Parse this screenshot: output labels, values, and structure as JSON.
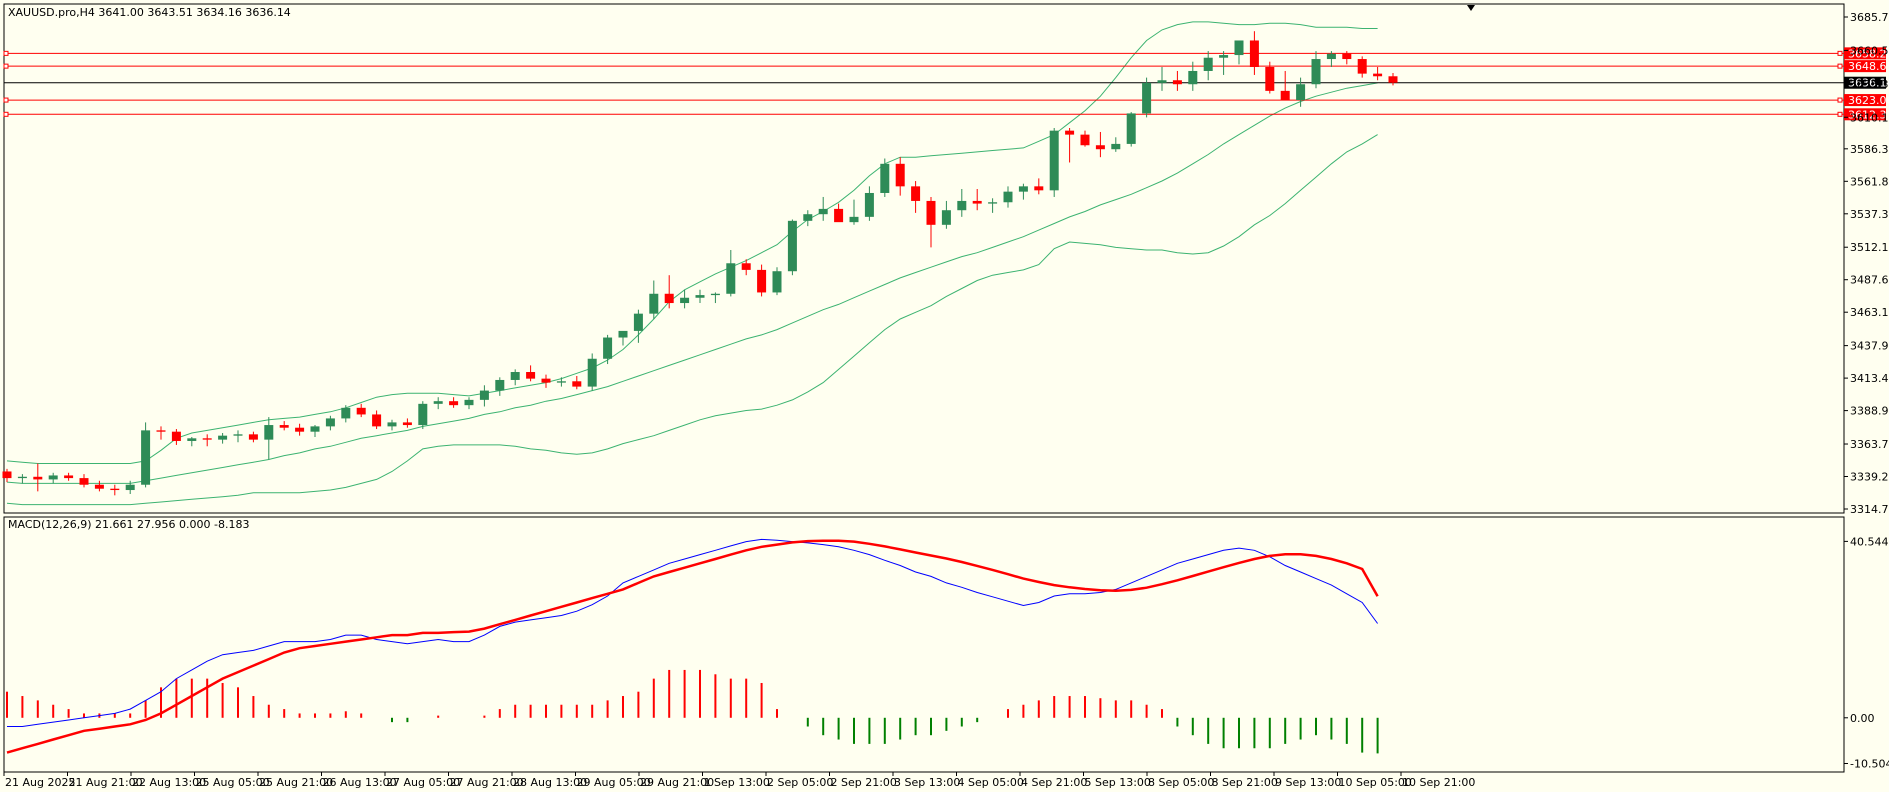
{
  "header": {
    "symbol_info": "XAUUSD.pro,H4  3641.00 3643.51 3634.16 3636.14"
  },
  "macd_header": {
    "text": "MACD(12,26,9) 21.661 27.956 0.000 -8.183"
  },
  "colors": {
    "background": "#fffff0",
    "bull": "#2e8b57",
    "bear": "#ff0000",
    "band": "#3cb371",
    "macd_line": "#0000ff",
    "signal_line": "#ff0000",
    "level_line": "#ff0000",
    "price_line": "#000000"
  },
  "chart_data": [
    {
      "type": "candlestick",
      "title": "XAUUSD.pro,H4",
      "y_ticks": [
        "3685.70",
        "3660.50",
        "3635.30",
        "3610.10",
        "3586.30",
        "3561.80",
        "3537.30",
        "3512.10",
        "3487.60",
        "3463.10",
        "3437.90",
        "3413.40",
        "3388.90",
        "3363.70",
        "3339.20",
        "3314.70"
      ],
      "ylim": [
        3314.7,
        3685.7
      ],
      "x_labels": [
        "21 Aug 2025",
        "21 Aug 21:00",
        "22 Aug 13:00",
        "25 Aug 05:00",
        "25 Aug 21:00",
        "26 Aug 13:00",
        "27 Aug 05:00",
        "27 Aug 21:00",
        "28 Aug 13:00",
        "29 Aug 05:00",
        "29 Aug 21:00",
        "1 Sep 13:00",
        "2 Sep 05:00",
        "2 Sep 21:00",
        "3 Sep 13:00",
        "4 Sep 05:00",
        "4 Sep 21:00",
        "5 Sep 13:00",
        "8 Sep 05:00",
        "8 Sep 21:00",
        "9 Sep 13:00",
        "10 Sep 05:00",
        "10 Sep 21:00"
      ],
      "levels": [
        {
          "label": "3658.28",
          "value": 3658.28
        },
        {
          "label": "3648.65",
          "value": 3648.65
        },
        {
          "label": "3623.06",
          "value": 3623.06
        },
        {
          "label": "3612.33",
          "value": 3612.33
        }
      ],
      "current_price": {
        "label": "3636.14",
        "value": 3636.14
      },
      "ohlc": [
        [
          3343,
          3345,
          3335,
          3338
        ],
        [
          3338,
          3341,
          3334,
          3339
        ],
        [
          3339,
          3349,
          3328,
          3337
        ],
        [
          3337,
          3342,
          3334,
          3340
        ],
        [
          3340,
          3342,
          3336,
          3338
        ],
        [
          3338,
          3341,
          3331,
          3333
        ],
        [
          3333,
          3336,
          3328,
          3330
        ],
        [
          3330,
          3333,
          3325,
          3329
        ],
        [
          3329,
          3336,
          3326,
          3333
        ],
        [
          3333,
          3380,
          3331,
          3374
        ],
        [
          3374,
          3377,
          3367,
          3373
        ],
        [
          3373,
          3375,
          3363,
          3366
        ],
        [
          3366,
          3369,
          3362,
          3368
        ],
        [
          3368,
          3371,
          3362,
          3367
        ],
        [
          3367,
          3372,
          3364,
          3370
        ],
        [
          3370,
          3374,
          3365,
          3371
        ],
        [
          3371,
          3373,
          3365,
          3367
        ],
        [
          3367,
          3384,
          3352,
          3378
        ],
        [
          3378,
          3381,
          3374,
          3376
        ],
        [
          3376,
          3379,
          3370,
          3373
        ],
        [
          3373,
          3378,
          3369,
          3377
        ],
        [
          3377,
          3385,
          3374,
          3383
        ],
        [
          3383,
          3393,
          3380,
          3391
        ],
        [
          3391,
          3394,
          3384,
          3386
        ],
        [
          3386,
          3389,
          3375,
          3377
        ],
        [
          3377,
          3382,
          3374,
          3380
        ],
        [
          3380,
          3383,
          3376,
          3378
        ],
        [
          3378,
          3396,
          3375,
          3394
        ],
        [
          3394,
          3399,
          3390,
          3396
        ],
        [
          3396,
          3399,
          3391,
          3393
        ],
        [
          3393,
          3399,
          3390,
          3397
        ],
        [
          3397,
          3408,
          3392,
          3404
        ],
        [
          3404,
          3414,
          3400,
          3412
        ],
        [
          3412,
          3420,
          3408,
          3418
        ],
        [
          3418,
          3423,
          3411,
          3413
        ],
        [
          3413,
          3416,
          3406,
          3410
        ],
        [
          3410,
          3414,
          3407,
          3411
        ],
        [
          3411,
          3415,
          3405,
          3407
        ],
        [
          3407,
          3432,
          3404,
          3428
        ],
        [
          3428,
          3446,
          3424,
          3444
        ],
        [
          3444,
          3448,
          3438,
          3449
        ],
        [
          3449,
          3465,
          3440,
          3462
        ],
        [
          3462,
          3487,
          3458,
          3477
        ],
        [
          3477,
          3491,
          3466,
          3470
        ],
        [
          3470,
          3480,
          3466,
          3474
        ],
        [
          3474,
          3480,
          3470,
          3476
        ],
        [
          3476,
          3478,
          3470,
          3477
        ],
        [
          3477,
          3510,
          3475,
          3500
        ],
        [
          3500,
          3503,
          3491,
          3495
        ],
        [
          3495,
          3499,
          3475,
          3478
        ],
        [
          3478,
          3497,
          3476,
          3494
        ],
        [
          3494,
          3533,
          3491,
          3532
        ],
        [
          3532,
          3540,
          3528,
          3537
        ],
        [
          3537,
          3550,
          3532,
          3541
        ],
        [
          3541,
          3545,
          3532,
          3531
        ],
        [
          3531,
          3548,
          3529,
          3535
        ],
        [
          3535,
          3558,
          3532,
          3553
        ],
        [
          3553,
          3579,
          3550,
          3575
        ],
        [
          3575,
          3580,
          3551,
          3558
        ],
        [
          3558,
          3562,
          3538,
          3547
        ],
        [
          3547,
          3550,
          3512,
          3529
        ],
        [
          3529,
          3547,
          3526,
          3540
        ],
        [
          3540,
          3556,
          3535,
          3547
        ],
        [
          3547,
          3556,
          3540,
          3545
        ],
        [
          3545,
          3549,
          3538,
          3546
        ],
        [
          3546,
          3558,
          3542,
          3554
        ],
        [
          3554,
          3560,
          3548,
          3558
        ],
        [
          3558,
          3564,
          3552,
          3555
        ],
        [
          3555,
          3602,
          3550,
          3600
        ],
        [
          3600,
          3602,
          3576,
          3597
        ],
        [
          3597,
          3600,
          3588,
          3589
        ],
        [
          3589,
          3599,
          3580,
          3586
        ],
        [
          3586,
          3595,
          3584,
          3590
        ],
        [
          3590,
          3614,
          3588,
          3613
        ],
        [
          3613,
          3640,
          3610,
          3636
        ],
        [
          3636,
          3648,
          3630,
          3638
        ],
        [
          3638,
          3645,
          3630,
          3635
        ],
        [
          3635,
          3652,
          3630,
          3645
        ],
        [
          3645,
          3660,
          3638,
          3655
        ],
        [
          3655,
          3660,
          3642,
          3657
        ],
        [
          3657,
          3665,
          3650,
          3668
        ],
        [
          3668,
          3675,
          3642,
          3648
        ],
        [
          3648,
          3652,
          3628,
          3630
        ],
        [
          3630,
          3645,
          3625,
          3623
        ],
        [
          3623,
          3640,
          3618,
          3635
        ],
        [
          3635,
          3660,
          3632,
          3654
        ],
        [
          3654,
          3660,
          3648,
          3658
        ],
        [
          3658,
          3660,
          3650,
          3654
        ],
        [
          3654,
          3656,
          3640,
          3643
        ],
        [
          3643,
          3648,
          3638,
          3641
        ],
        [
          3641,
          3643.51,
          3634.16,
          3636.14
        ]
      ],
      "bollinger": {
        "middle": [
          3335,
          3334,
          3334,
          3334,
          3334,
          3334,
          3334,
          3334,
          3334,
          3336,
          3338,
          3340,
          3342,
          3344,
          3346,
          3348,
          3350,
          3352,
          3355,
          3357,
          3360,
          3362,
          3365,
          3368,
          3370,
          3372,
          3374,
          3377,
          3379,
          3381,
          3383,
          3386,
          3388,
          3391,
          3393,
          3396,
          3398,
          3401,
          3404,
          3407,
          3411,
          3415,
          3419,
          3423,
          3427,
          3431,
          3435,
          3439,
          3443,
          3446,
          3450,
          3455,
          3460,
          3465,
          3469,
          3474,
          3479,
          3484,
          3489,
          3493,
          3497,
          3501,
          3505,
          3508,
          3512,
          3516,
          3520,
          3525,
          3530,
          3535,
          3539,
          3544,
          3548,
          3552,
          3557,
          3562,
          3568,
          3575,
          3582,
          3590,
          3597,
          3604,
          3611,
          3617,
          3622,
          3626,
          3629,
          3632,
          3634,
          3636
        ],
        "upper": [
          3351,
          3350,
          3349,
          3349,
          3349,
          3349,
          3349,
          3349,
          3349,
          3351,
          3359,
          3368,
          3372,
          3374,
          3376,
          3378,
          3380,
          3382,
          3383,
          3384,
          3386,
          3388,
          3391,
          3395,
          3399,
          3401,
          3402,
          3402,
          3402,
          3401,
          3400,
          3402,
          3404,
          3406,
          3408,
          3410,
          3413,
          3417,
          3421,
          3427,
          3435,
          3446,
          3458,
          3471,
          3480,
          3486,
          3492,
          3497,
          3502,
          3508,
          3514,
          3524,
          3533,
          3539,
          3546,
          3555,
          3566,
          3575,
          3580,
          3580,
          3581,
          3582,
          3583,
          3584,
          3585,
          3586,
          3587,
          3592,
          3597,
          3606,
          3615,
          3626,
          3640,
          3655,
          3668,
          3676,
          3680,
          3682,
          3682,
          3681,
          3680,
          3680,
          3681,
          3681,
          3680,
          3678,
          3678,
          3678,
          3677,
          3677
        ],
        "lower": [
          3319,
          3318,
          3318,
          3318,
          3318,
          3318,
          3318,
          3318,
          3318,
          3319,
          3320,
          3321,
          3322,
          3323,
          3324,
          3325,
          3327,
          3327,
          3327,
          3327,
          3328,
          3329,
          3331,
          3334,
          3337,
          3343,
          3351,
          3360,
          3362,
          3363,
          3363,
          3363,
          3363,
          3362,
          3360,
          3359,
          3357,
          3356,
          3357,
          3360,
          3364,
          3367,
          3370,
          3374,
          3378,
          3382,
          3385,
          3387,
          3389,
          3390,
          3393,
          3397,
          3403,
          3410,
          3420,
          3430,
          3440,
          3450,
          3458,
          3463,
          3468,
          3475,
          3481,
          3487,
          3491,
          3493,
          3495,
          3499,
          3511,
          3516,
          3515,
          3514,
          3512,
          3511,
          3510,
          3510,
          3508,
          3507,
          3508,
          3513,
          3520,
          3529,
          3536,
          3545,
          3555,
          3565,
          3575,
          3584,
          3590,
          3597
        ]
      }
    },
    {
      "type": "macd",
      "title": "MACD(12,26,9)",
      "y_ticks": [
        "40.544",
        "0.00",
        "-10.504"
      ],
      "ylim": [
        -12,
        45
      ],
      "macd": [
        -2,
        -2,
        -1.5,
        -1,
        -0.5,
        0,
        0.5,
        1,
        2,
        4,
        6,
        9,
        11,
        13,
        14.5,
        15,
        15.5,
        16.5,
        17.5,
        17.5,
        17.5,
        18,
        19,
        19,
        18,
        17.5,
        17,
        17.5,
        18,
        17.5,
        17.5,
        19,
        21,
        22,
        22.5,
        23,
        23.5,
        24.5,
        26,
        28,
        31,
        32.5,
        34,
        35.5,
        36.5,
        37.5,
        38.5,
        39.5,
        40.5,
        41,
        40.8,
        40.5,
        40.2,
        39.8,
        39.3,
        38.5,
        37.5,
        36.2,
        35,
        33.5,
        32.5,
        31,
        30,
        28.8,
        27.8,
        26.8,
        25.8,
        26.5,
        28,
        28.5,
        28.5,
        28.8,
        29.5,
        31,
        32.5,
        34,
        35.5,
        36.5,
        37.5,
        38.5,
        39,
        38.5,
        37,
        35,
        33.5,
        32,
        30.5,
        28.5,
        26.5,
        21.661
      ],
      "signal": [
        -8,
        -7,
        -6,
        -5,
        -4,
        -3,
        -2.5,
        -2,
        -1.5,
        -0.5,
        1,
        3,
        5,
        7,
        9,
        10.5,
        12,
        13.5,
        15,
        16,
        16.5,
        17,
        17.5,
        18,
        18.5,
        19,
        19,
        19.5,
        19.5,
        19.7,
        19.8,
        20.5,
        21.5,
        22.5,
        23.5,
        24.5,
        25.5,
        26.5,
        27.5,
        28.5,
        29.5,
        31,
        32.5,
        33.5,
        34.5,
        35.5,
        36.5,
        37.5,
        38.5,
        39.3,
        39.8,
        40.3,
        40.6,
        40.7,
        40.7,
        40.5,
        40,
        39.4,
        38.7,
        38,
        37.3,
        36.6,
        35.8,
        34.9,
        34,
        33,
        32,
        31.2,
        30.5,
        30,
        29.6,
        29.3,
        29.2,
        29.4,
        29.9,
        30.7,
        31.6,
        32.6,
        33.6,
        34.6,
        35.6,
        36.5,
        37.2,
        37.6,
        37.6,
        37.2,
        36.5,
        35.5,
        34.2,
        27.956
      ],
      "histogram": [
        6,
        5,
        4,
        3,
        2,
        1,
        1,
        1,
        1,
        4,
        7,
        9,
        9,
        9,
        8,
        7,
        5,
        3,
        2,
        1,
        1,
        1,
        1.5,
        1,
        0,
        -1,
        -1,
        0,
        0.5,
        0,
        0,
        0.5,
        2,
        3,
        3,
        3,
        3,
        3,
        3,
        4,
        5,
        6,
        9,
        11,
        11,
        11,
        10,
        9,
        9,
        8,
        2,
        0,
        -2,
        -4,
        -5,
        -6,
        -6,
        -6,
        -5,
        -4,
        -4,
        -3,
        -2,
        -1,
        0,
        2,
        3,
        4,
        5,
        5,
        5,
        4.5,
        4,
        4,
        3,
        2,
        -2,
        -4,
        -6,
        -7,
        -7,
        -7,
        -7,
        -6,
        -5,
        -4,
        -5,
        -6,
        -8,
        -8.183
      ]
    }
  ],
  "x_axis_labels": [
    "21 Aug 2025",
    "21 Aug 21:00",
    "22 Aug 13:00",
    "25 Aug 05:00",
    "25 Aug 21:00",
    "26 Aug 13:00",
    "27 Aug 05:00",
    "27 Aug 21:00",
    "28 Aug 13:00",
    "29 Aug 05:00",
    "29 Aug 21:00",
    "1 Sep 13:00",
    "2 Sep 05:00",
    "2 Sep 21:00",
    "3 Sep 13:00",
    "4 Sep 05:00",
    "4 Sep 21:00",
    "5 Sep 13:00",
    "8 Sep 05:00",
    "8 Sep 21:00",
    "9 Sep 13:00",
    "10 Sep 05:00",
    "10 Sep 21:00"
  ]
}
